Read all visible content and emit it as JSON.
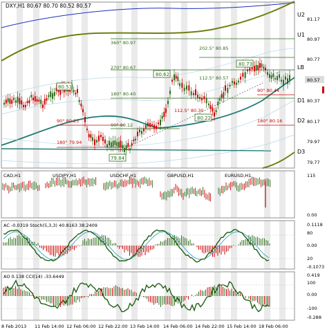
{
  "main": {
    "title": "DXY,H1  80.67 80.70 80.52 80.57",
    "price_tag": "80.57",
    "levels": [
      {
        "label": "U2",
        "price": "81.17"
      },
      {
        "label": "U1",
        "price": "80.97"
      },
      {
        "label": "LB",
        "price": "80.77"
      },
      {
        "label": "",
        "price": "80.57"
      },
      {
        "label": "D1",
        "price": "80.37"
      },
      {
        "label": "D2",
        "price": "80.17"
      },
      {
        "label": "D3",
        "price": "79.97"
      },
      {
        "label": "",
        "price": "79.77"
      }
    ],
    "boxes": [
      "80.51",
      "80.62",
      "80.73",
      "80.22",
      "79.84"
    ],
    "annotations": [
      {
        "text": "360° 80.97",
        "color": "#2e6b1a"
      },
      {
        "text": "202.5° 80.85",
        "color": "#2e6b1a"
      },
      {
        "text": "270° 80.67",
        "color": "#2e6b1a"
      },
      {
        "text": "112.5° 80.57",
        "color": "#2e6b1a"
      },
      {
        "text": "180° 80.40",
        "color": "#2e6b1a"
      },
      {
        "text": "90° 80.44",
        "color": "#cc0000"
      },
      {
        "text": "112.5° 80.30",
        "color": "#cc0000"
      },
      {
        "text": "90° 80.23",
        "color": "#cc0000"
      },
      {
        "text": "90° 80.12",
        "color": "#2e6b1a"
      },
      {
        "text": "180° 80.16",
        "color": "#cc0000"
      },
      {
        "text": "180° 79.94",
        "color": "#cc0000"
      }
    ]
  },
  "mini": {
    "labels": [
      "CAD,H1",
      "USDJPY,H1",
      "USDCHF,H1",
      "GBPUSD,H1",
      "EURUSD,H1"
    ],
    "scale": [
      "115",
      "",
      "0.00"
    ]
  },
  "stoch": {
    "label": "AC -0.0319  Stoch(5,3,3) 40.8163 38.2409",
    "scale": [
      "0.1118",
      "80",
      "0.00",
      "20",
      "-0.1073"
    ]
  },
  "ao": {
    "label": "AO 0.138  CCI(14) -33.6449",
    "scale": [
      "0.419",
      "100",
      "0.00",
      "-100",
      "-0.288"
    ]
  },
  "x_axis": [
    "8 Feb 2013",
    "11 Feb 14:00",
    "12 Feb 06:00",
    "12 Feb 22:00",
    "13 Feb 14:00",
    "14 Feb 06:00",
    "14 Feb 22:00",
    "15 Feb 14:00",
    "18 Feb 06:00"
  ],
  "colors": {
    "bull": "#2e6b1a",
    "bear": "#cc0000",
    "band_teal": "#1f7a72",
    "band_olive": "#6d7f10",
    "band_blue": "#1a2fbf",
    "price_tag_bg": "#dcdcdc"
  }
}
